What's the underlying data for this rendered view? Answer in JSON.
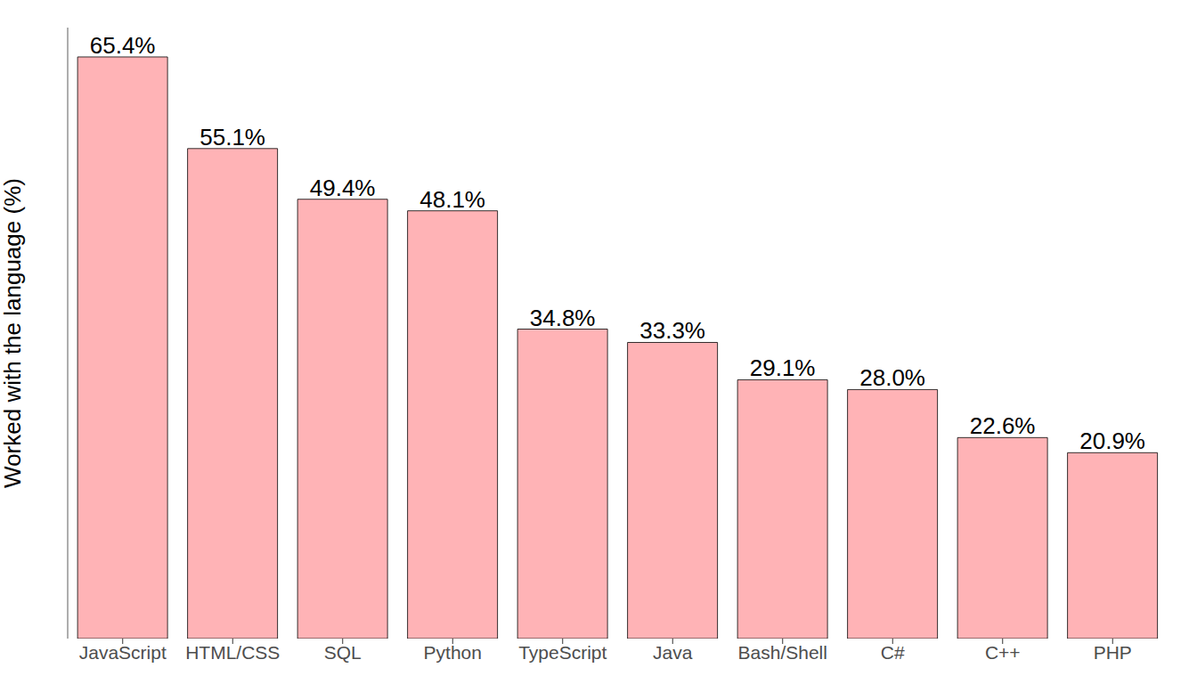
{
  "chart_data": {
    "type": "bar",
    "y_label": "Worked with the language (%)",
    "categories": [
      "JavaScript",
      "HTML/CSS",
      "SQL",
      "Python",
      "TypeScript",
      "Java",
      "Bash/Shell",
      "C#",
      "C++",
      "PHP"
    ],
    "values": [
      65.4,
      55.1,
      49.4,
      48.1,
      34.8,
      33.3,
      29.1,
      28.0,
      22.6,
      20.9
    ],
    "value_labels": [
      "65.4%",
      "55.1%",
      "49.4%",
      "48.1%",
      "34.8%",
      "33.3%",
      "29.1%",
      "28.0%",
      "22.6%",
      "20.9%"
    ],
    "color": "#ffb3b6",
    "ylim": [
      0,
      68.7
    ],
    "grid": false,
    "data_labels": true,
    "tick_labels": "x"
  }
}
